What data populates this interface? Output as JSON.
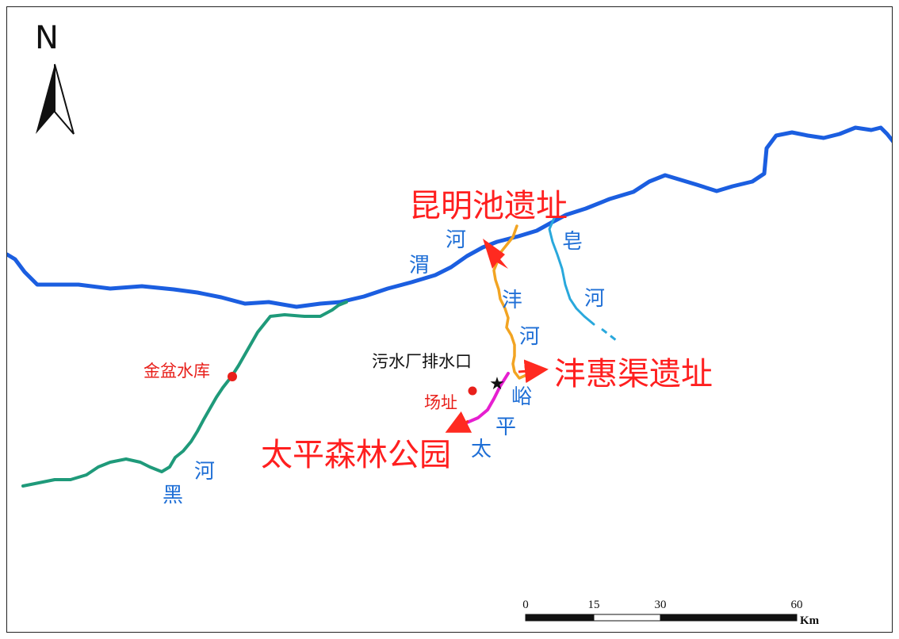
{
  "north_arrow": {
    "label": "N",
    "icon": "north-arrow-icon"
  },
  "rivers": {
    "wei": {
      "chars": [
        "渭",
        "河"
      ],
      "color": "#1b5ee0"
    },
    "hei": {
      "chars": [
        "黑",
        "河"
      ],
      "color": "#1f9a7a"
    },
    "feng": {
      "chars": [
        "沣",
        "河"
      ],
      "color": "#f2a422"
    },
    "zao": {
      "chars": [
        "皂",
        "河"
      ],
      "color": "#29a8dc"
    },
    "taipingyu": {
      "chars": [
        "太",
        "平",
        "峪"
      ],
      "color": "#e61fd0"
    }
  },
  "places": {
    "kunming_pool": "昆明池遗址",
    "fenghui_canal": "沣惠渠遗址",
    "taiping_forest": "太平森林公园",
    "jinpen_reservoir": "金盆水库",
    "site": "场址",
    "sewage_outlet": "污水厂排水口"
  },
  "colors": {
    "accent_red": "#ff1f1f",
    "outline": "#222222"
  },
  "scale_bar": {
    "ticks": [
      "0",
      "15",
      "30",
      "60"
    ],
    "unit": "Km"
  }
}
